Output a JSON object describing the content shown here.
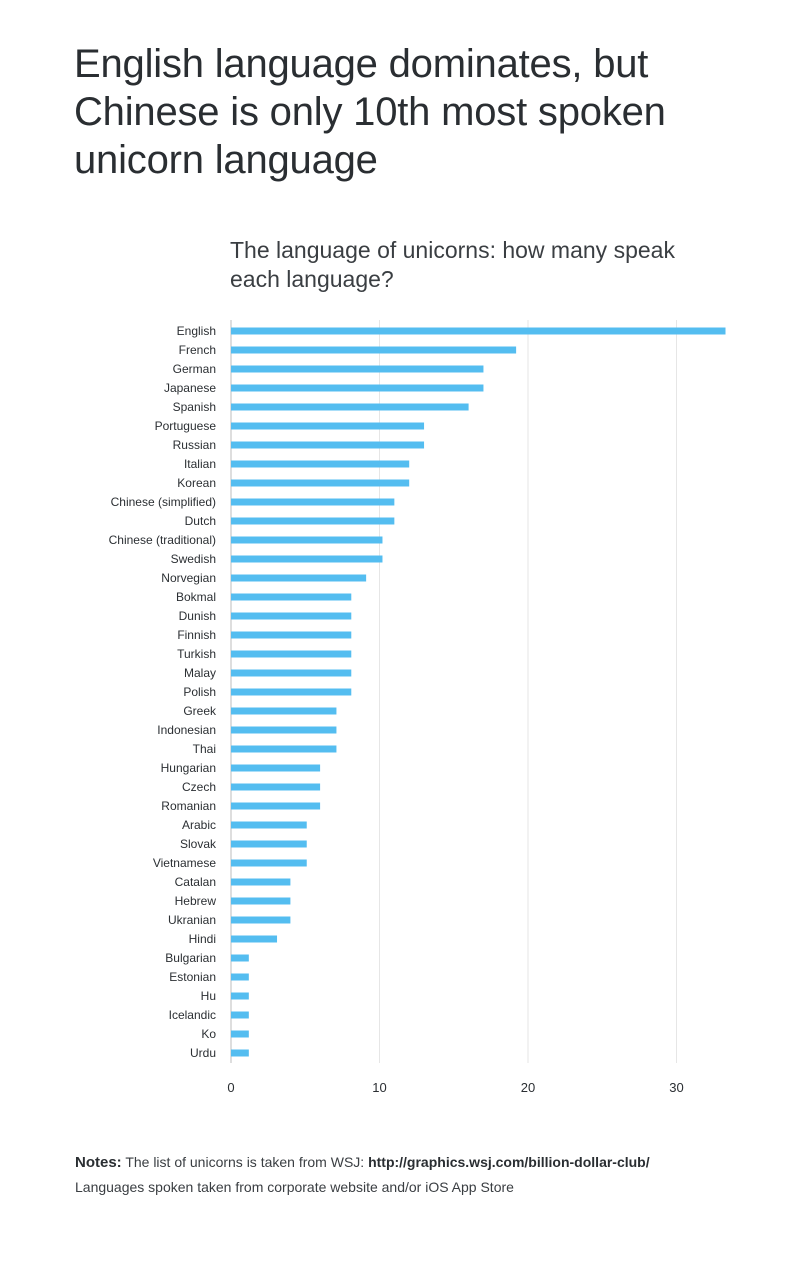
{
  "headline": "English language dominates, but Chinese is only 10th most spoken unicorn language",
  "notes": {
    "label": "Notes:",
    "line1_text": "The list of unicorns is taken from WSJ:",
    "line1_url": "http://graphics.wsj.com/billion-dollar-club/",
    "line2": "Languages spoken taken from corporate website and/or iOS App Store"
  },
  "colors": {
    "bar": "#54bdf0",
    "grid": "#e6e6e6",
    "text": "#2b2f33"
  },
  "chart_data": {
    "type": "bar",
    "orientation": "horizontal",
    "title": "The language of unicorns: how many speak each language?",
    "xlabel": "",
    "ylabel": "",
    "xlim": [
      0,
      33.5
    ],
    "xticks": [
      0,
      10,
      20,
      30
    ],
    "grid": true,
    "categories": [
      "English",
      "French",
      "German",
      "Japanese",
      "Spanish",
      "Portuguese",
      "Russian",
      "Italian",
      "Korean",
      "Chinese (simplified)",
      "Dutch",
      "Chinese (traditional)",
      "Swedish",
      "Norvegian",
      "Bokmal",
      "Dunish",
      "Finnish",
      "Turkish",
      "Malay",
      "Polish",
      "Greek",
      "Indonesian",
      "Thai",
      "Hungarian",
      "Czech",
      "Romanian",
      "Arabic",
      "Slovak",
      "Vietnamese",
      "Catalan",
      "Hebrew",
      "Ukranian",
      "Hindi",
      "Bulgarian",
      "Estonian",
      "Hu",
      "Icelandic",
      "Ko",
      "Urdu"
    ],
    "values": [
      33.3,
      19.2,
      17,
      17,
      16,
      13,
      13,
      12,
      12,
      11,
      11,
      10.2,
      10.2,
      9.1,
      8.1,
      8.1,
      8.1,
      8.1,
      8.1,
      8.1,
      7.1,
      7.1,
      7.1,
      6,
      6,
      6,
      5.1,
      5.1,
      5.1,
      4,
      4,
      4,
      3.1,
      1.2,
      1.2,
      1.2,
      1.2,
      1.2,
      1.2
    ]
  }
}
